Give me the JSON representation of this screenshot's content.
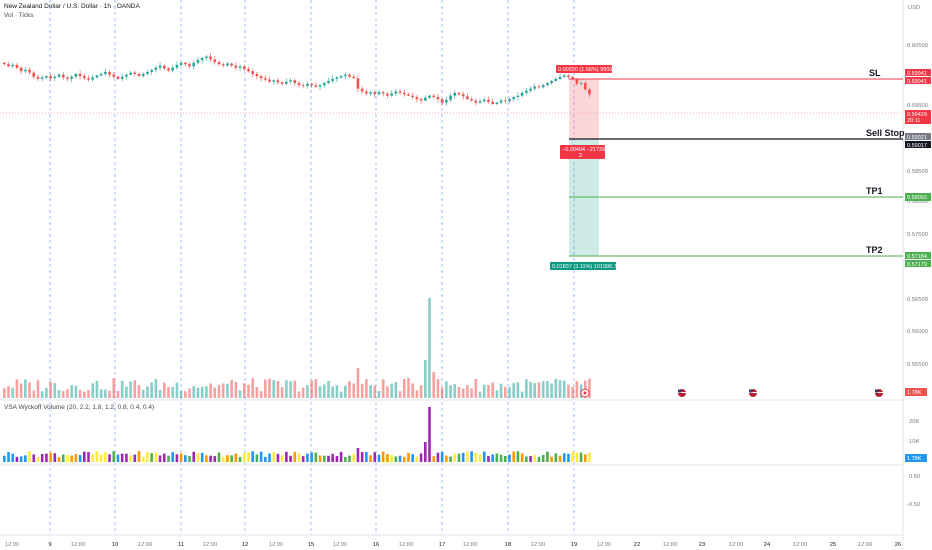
{
  "header": {
    "title": "New Zealand Dollar / U.S. Dollar · 1h · OANDA",
    "volume_label": "Vol · Ticks",
    "wyckoff_label": "VSA Wyckoff Volume (20, 2.2, 1.8, 1.2, 0.8, 0.4, 0.4)",
    "currency": "USD"
  },
  "colors": {
    "up": "#26a69a",
    "down": "#ef5350",
    "sl": "#f23645",
    "tp": "#4caf50",
    "entry": "#131722",
    "grid_blue": "#2962ff"
  },
  "levels": {
    "sl": {
      "label": "SL",
      "price_tags": [
        "0.59941",
        "0.59941"
      ]
    },
    "current": {
      "price_tags": [
        "0.59429",
        "20:11"
      ]
    },
    "entry": {
      "label": "Sell Stop",
      "price_tags": [
        "0.59021",
        "0.59017"
      ]
    },
    "tp1": {
      "label": "TP1",
      "price_tags": [
        "0.58093"
      ]
    },
    "tp2": {
      "label": "TP2",
      "price_tags": [
        "0.57184",
        "0.57179"
      ]
    }
  },
  "position_badges": {
    "risk": "0.00920 (1.56%) 99000",
    "middle_line1": "−0.00404 −21739",
    "middle_line2": "2",
    "reward": "0.01837 (3.11%) 101996.74"
  },
  "price_axis": [
    "0.60500",
    "0.60000",
    "0.59500",
    "0.59000",
    "0.58500",
    "0.58000",
    "0.57500",
    "0.57000",
    "0.56500",
    "0.56000",
    "0.55500"
  ],
  "volume_tag": "1.78K",
  "wyckoff_axis": [
    "20K",
    "10K"
  ],
  "wyckoff_tag": "1.78K",
  "osc_axis": [
    "0.50",
    "-0.50"
  ],
  "time_axis": [
    "12:00",
    "9",
    "12:00",
    "10",
    "12:00",
    "11",
    "12:00",
    "12",
    "12:00",
    "15",
    "12:00",
    "16",
    "12:00",
    "17",
    "12:00",
    "18",
    "12:00",
    "19",
    "12:00",
    "22",
    "12:00",
    "23",
    "12:00",
    "24",
    "12:00",
    "25",
    "12:00",
    "26"
  ],
  "chart_data": {
    "type": "candlestick",
    "title": "New Zealand Dollar / U.S. Dollar · 1h · OANDA",
    "ylim": [
      0.5505,
      0.6078
    ],
    "close": [
      0.5986,
      0.5983,
      0.5985,
      0.5981,
      0.5976,
      0.5978,
      0.5974,
      0.5968,
      0.5965,
      0.5967,
      0.5969,
      0.5966,
      0.5968,
      0.5971,
      0.5967,
      0.5965,
      0.5968,
      0.5972,
      0.5969,
      0.5966,
      0.5964,
      0.5967,
      0.597,
      0.5972,
      0.5975,
      0.5971,
      0.5968,
      0.5965,
      0.5968,
      0.5971,
      0.5974,
      0.5972,
      0.5969,
      0.5972,
      0.5975,
      0.5978,
      0.5981,
      0.5984,
      0.598,
      0.5977,
      0.5981,
      0.5985,
      0.5988,
      0.5986,
      0.5983,
      0.5988,
      0.5992,
      0.5995,
      0.5997,
      0.5993,
      0.5989,
      0.5986,
      0.5984,
      0.5987,
      0.5984,
      0.5981,
      0.5983,
      0.5979,
      0.5976,
      0.5972,
      0.5969,
      0.5966,
      0.5964,
      0.5961,
      0.5963,
      0.596,
      0.5958,
      0.5961,
      0.5963,
      0.5959,
      0.5956,
      0.5955,
      0.5958,
      0.5956,
      0.5954,
      0.5956,
      0.5959,
      0.5962,
      0.5965,
      0.5967,
      0.5969,
      0.5971,
      0.5968,
      0.5966,
      0.5951,
      0.5947,
      0.5944,
      0.5946,
      0.5943,
      0.5946,
      0.5944,
      0.5941,
      0.5944,
      0.5947,
      0.5945,
      0.5943,
      0.5941,
      0.5939,
      0.5936,
      0.5934,
      0.5938,
      0.5941,
      0.5939,
      0.5936,
      0.5931,
      0.5935,
      0.5941,
      0.5945,
      0.5943,
      0.594,
      0.5936,
      0.5934,
      0.5931,
      0.5933,
      0.5935,
      0.5932,
      0.5929,
      0.5931,
      0.5934,
      0.5933,
      0.5936,
      0.5939,
      0.5941,
      0.5945,
      0.5948,
      0.5951,
      0.5954,
      0.5953,
      0.5956,
      0.5959,
      0.5962,
      0.5965,
      0.5968,
      0.597,
      0.5968,
      0.5965,
      0.5958,
      0.5959,
      0.595,
      0.5943
    ],
    "volume_label": "Vol · Ticks",
    "volume_last": "1.78K"
  }
}
